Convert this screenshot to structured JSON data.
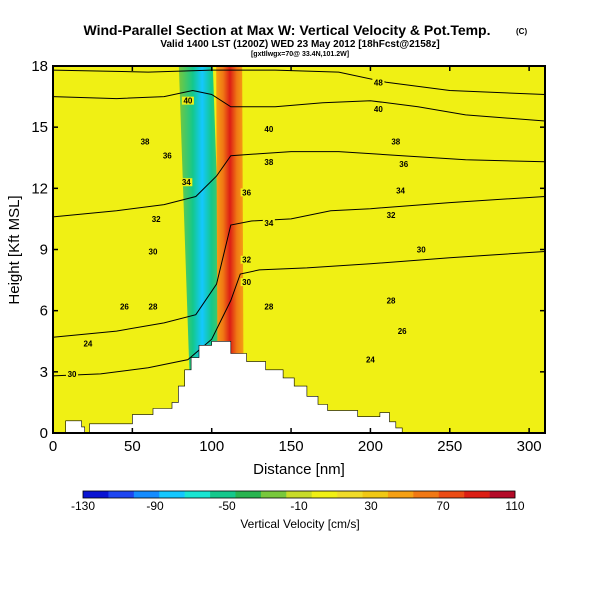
{
  "title": "Wind-Parallel Section at Max W: Vertical Velocity & Pot.Temp.",
  "copyright": "(C)",
  "subtitle": "Valid 1400 LST (1200Z) WED 23 May 2012 [18hFcst@2158z]",
  "subsubtitle": "[gxtIlwgx=70@ 33.4N,101.2W]",
  "chart_data": {
    "type": "heatmap",
    "xlabel": "Distance [nm]",
    "ylabel": "Height [Kft MSL]",
    "xlim": [
      0,
      310
    ],
    "ylim": [
      0,
      18
    ],
    "x_ticks": [
      "0",
      "50",
      "100",
      "150",
      "200",
      "250",
      "300"
    ],
    "y_ticks": [
      "0",
      "3",
      "6",
      "9",
      "12",
      "15",
      "18"
    ],
    "colorbar": {
      "label": "Vertical Velocity [cm/s]",
      "tick_labels": [
        "-130",
        "-90",
        "-50",
        "-10",
        "30",
        "70",
        "110"
      ],
      "colors": [
        "#0a14d2",
        "#1e46f0",
        "#148cff",
        "#14c8ff",
        "#19e6d2",
        "#14c88c",
        "#28b450",
        "#78c83c",
        "#c8dc28",
        "#f0f014",
        "#f0dc28",
        "#f0c814",
        "#f5a014",
        "#f07814",
        "#eb4b14",
        "#dc1e14",
        "#b40a28"
      ]
    },
    "terrain_profile": [
      [
        0,
        0
      ],
      [
        8,
        0
      ],
      [
        8,
        0.6
      ],
      [
        18,
        0.6
      ],
      [
        18,
        0.3
      ],
      [
        20,
        0.3
      ],
      [
        20,
        0
      ],
      [
        23,
        0
      ],
      [
        23,
        0.45
      ],
      [
        50,
        0.45
      ],
      [
        50,
        0.9
      ],
      [
        63,
        0.9
      ],
      [
        63,
        1.2
      ],
      [
        75,
        1.2
      ],
      [
        75,
        1.5
      ],
      [
        79,
        1.5
      ],
      [
        79,
        2.3
      ],
      [
        83,
        2.3
      ],
      [
        83,
        3.1
      ],
      [
        87,
        3.1
      ],
      [
        87,
        3.7
      ],
      [
        92,
        3.7
      ],
      [
        92,
        4.3
      ],
      [
        100,
        4.3
      ],
      [
        100,
        4.5
      ],
      [
        112,
        4.5
      ],
      [
        112,
        3.9
      ],
      [
        122,
        3.9
      ],
      [
        122,
        3.5
      ],
      [
        134,
        3.5
      ],
      [
        134,
        3.1
      ],
      [
        145,
        3.1
      ],
      [
        145,
        2.7
      ],
      [
        152,
        2.7
      ],
      [
        152,
        2.3
      ],
      [
        160,
        2.3
      ],
      [
        160,
        1.8
      ],
      [
        167,
        1.8
      ],
      [
        167,
        1.4
      ],
      [
        173,
        1.4
      ],
      [
        173,
        1.1
      ],
      [
        192,
        1.1
      ],
      [
        192,
        0.8
      ],
      [
        206,
        0.8
      ],
      [
        206,
        1.0
      ],
      [
        212,
        1.0
      ],
      [
        212,
        0.55
      ],
      [
        216,
        0.55
      ],
      [
        216,
        0.25
      ],
      [
        220,
        0.25
      ],
      [
        220,
        0
      ],
      [
        310,
        0
      ]
    ],
    "updraft_band": {
      "base_x": 112,
      "top_x": 111,
      "core_value": 110
    },
    "downdraft_band": {
      "base_x": 98,
      "top_x": 90,
      "core_value": -50
    },
    "theta_contours": [
      {
        "value": 30,
        "label": "30",
        "points": [
          [
            0,
            2.8
          ],
          [
            30,
            2.9
          ],
          [
            60,
            3.2
          ],
          [
            85,
            3.6
          ],
          [
            100,
            4.6
          ],
          [
            112,
            6.5
          ],
          [
            118,
            7.8
          ],
          [
            130,
            8.0
          ],
          [
            160,
            8.1
          ],
          [
            200,
            8.3
          ],
          [
            250,
            8.6
          ],
          [
            310,
            8.9
          ]
        ]
      },
      {
        "value": 34,
        "label": "34",
        "points": [
          [
            0,
            4.7
          ],
          [
            40,
            5.0
          ],
          [
            70,
            5.4
          ],
          [
            90,
            5.8
          ],
          [
            103,
            7.3
          ],
          [
            112,
            10.2
          ],
          [
            125,
            10.4
          ],
          [
            150,
            10.5
          ],
          [
            175,
            10.9
          ],
          [
            200,
            11.0
          ],
          [
            250,
            11.3
          ],
          [
            310,
            11.6
          ]
        ]
      },
      {
        "value": 36,
        "label": "36",
        "points": [
          [
            0,
            10.6
          ],
          [
            40,
            10.9
          ],
          [
            70,
            11.2
          ],
          [
            90,
            11.6
          ],
          [
            103,
            12.6
          ],
          [
            112,
            13.6
          ],
          [
            130,
            13.7
          ],
          [
            150,
            13.8
          ],
          [
            180,
            13.8
          ],
          [
            220,
            13.6
          ],
          [
            260,
            13.4
          ],
          [
            310,
            13.3
          ]
        ]
      },
      {
        "value": 40,
        "label": "40",
        "points": [
          [
            0,
            16.5
          ],
          [
            40,
            16.4
          ],
          [
            70,
            16.5
          ],
          [
            88,
            16.8
          ],
          [
            100,
            16.6
          ],
          [
            112,
            16.0
          ],
          [
            140,
            16.0
          ],
          [
            170,
            16.2
          ],
          [
            200,
            16.3
          ],
          [
            230,
            16.0
          ],
          [
            260,
            15.6
          ],
          [
            310,
            15.3
          ]
        ]
      },
      {
        "value": 48,
        "label": "48",
        "points": [
          [
            0,
            17.8
          ],
          [
            60,
            17.7
          ],
          [
            100,
            17.8
          ],
          [
            140,
            17.8
          ],
          [
            180,
            17.7
          ],
          [
            210,
            17.2
          ],
          [
            250,
            16.8
          ],
          [
            310,
            16.6
          ]
        ]
      }
    ],
    "contour_label_marks": [
      {
        "text": "30",
        "x": 12,
        "y": 2.9
      },
      {
        "text": "24",
        "x": 22,
        "y": 4.4
      },
      {
        "text": "26",
        "x": 45,
        "y": 6.2
      },
      {
        "text": "28",
        "x": 63,
        "y": 6.2
      },
      {
        "text": "30",
        "x": 63,
        "y": 8.9
      },
      {
        "text": "32",
        "x": 65,
        "y": 10.5
      },
      {
        "text": "34",
        "x": 84,
        "y": 12.3
      },
      {
        "text": "36",
        "x": 72,
        "y": 13.6
      },
      {
        "text": "38",
        "x": 58,
        "y": 14.3
      },
      {
        "text": "40",
        "x": 85,
        "y": 16.3
      },
      {
        "text": "40",
        "x": 136,
        "y": 14.9
      },
      {
        "text": "38",
        "x": 136,
        "y": 13.3
      },
      {
        "text": "36",
        "x": 122,
        "y": 11.8
      },
      {
        "text": "34",
        "x": 136,
        "y": 10.3
      },
      {
        "text": "32",
        "x": 122,
        "y": 8.5
      },
      {
        "text": "30",
        "x": 122,
        "y": 7.4
      },
      {
        "text": "28",
        "x": 136,
        "y": 6.2
      },
      {
        "text": "24",
        "x": 200,
        "y": 3.6
      },
      {
        "text": "26",
        "x": 220,
        "y": 5.0
      },
      {
        "text": "28",
        "x": 213,
        "y": 6.5
      },
      {
        "text": "30",
        "x": 232,
        "y": 9.0
      },
      {
        "text": "32",
        "x": 213,
        "y": 10.7
      },
      {
        "text": "34",
        "x": 219,
        "y": 11.9
      },
      {
        "text": "36",
        "x": 221,
        "y": 13.2
      },
      {
        "text": "38",
        "x": 216,
        "y": 14.3
      },
      {
        "text": "40",
        "x": 205,
        "y": 15.9
      },
      {
        "text": "48",
        "x": 205,
        "y": 17.2
      }
    ]
  },
  "colors": {
    "background": "#f0f014",
    "terrain": "#ffffff",
    "contour": "#000000"
  }
}
